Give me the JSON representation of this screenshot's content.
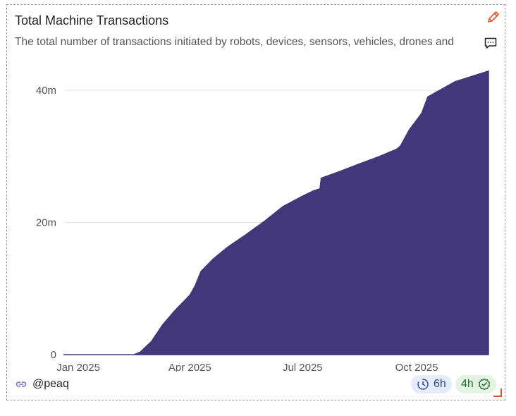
{
  "card": {
    "title": "Total Machine Transactions",
    "subtitle": "The total number of transactions initiated by robots, devices, sensors, vehicles, drones and",
    "edit_icon": "pencil-icon",
    "comment_icon": "comment-icon"
  },
  "footer": {
    "user_icon": "link-icon",
    "username": "@peaq",
    "badge_refresh": {
      "icon": "clock-icon",
      "label": "6h"
    },
    "badge_verified": {
      "icon": "check-badge-icon",
      "label": "4h"
    }
  },
  "colors": {
    "area_fill": "#41377a",
    "grid": "#e6e6e6",
    "accent": "#e2542b"
  },
  "chart_data": {
    "type": "area",
    "title": "Total Machine Transactions",
    "xlabel": "",
    "ylabel": "",
    "y_ticks": [
      {
        "value": 0,
        "label": "0"
      },
      {
        "value": 20000000,
        "label": "20m"
      },
      {
        "value": 40000000,
        "label": "40m"
      }
    ],
    "x_ticks": [
      {
        "value": "2025-01-01",
        "label": "Jan 2025"
      },
      {
        "value": "2025-04-01",
        "label": "Apr 2025"
      },
      {
        "value": "2025-07-01",
        "label": "Jul 2025"
      },
      {
        "value": "2025-10-01",
        "label": "Oct 2025"
      }
    ],
    "xlim": [
      "2024-12-20",
      "2025-11-28"
    ],
    "ylim": [
      0,
      40000000
    ],
    "grid": true,
    "series": [
      {
        "x": [
          "2024-12-20",
          "2025-01-15",
          "2025-02-15",
          "2025-02-20",
          "2025-03-01",
          "2025-03-10",
          "2025-03-20",
          "2025-04-01",
          "2025-04-05",
          "2025-04-10",
          "2025-04-20",
          "2025-05-01",
          "2025-05-15",
          "2025-06-01",
          "2025-06-15",
          "2025-07-01",
          "2025-07-10",
          "2025-07-15",
          "2025-07-16",
          "2025-08-01",
          "2025-08-15",
          "2025-09-01",
          "2025-09-15",
          "2025-09-18",
          "2025-09-25",
          "2025-10-05",
          "2025-10-10",
          "2025-11-01",
          "2025-11-28"
        ],
        "values": [
          0,
          0,
          0,
          400000,
          2000000,
          4500000,
          6700000,
          9000000,
          10300000,
          12600000,
          14500000,
          16200000,
          18000000,
          20300000,
          22400000,
          24000000,
          24800000,
          25100000,
          26700000,
          27800000,
          28800000,
          30000000,
          31100000,
          31600000,
          34000000,
          36500000,
          39000000,
          41300000,
          42900000
        ]
      }
    ]
  }
}
